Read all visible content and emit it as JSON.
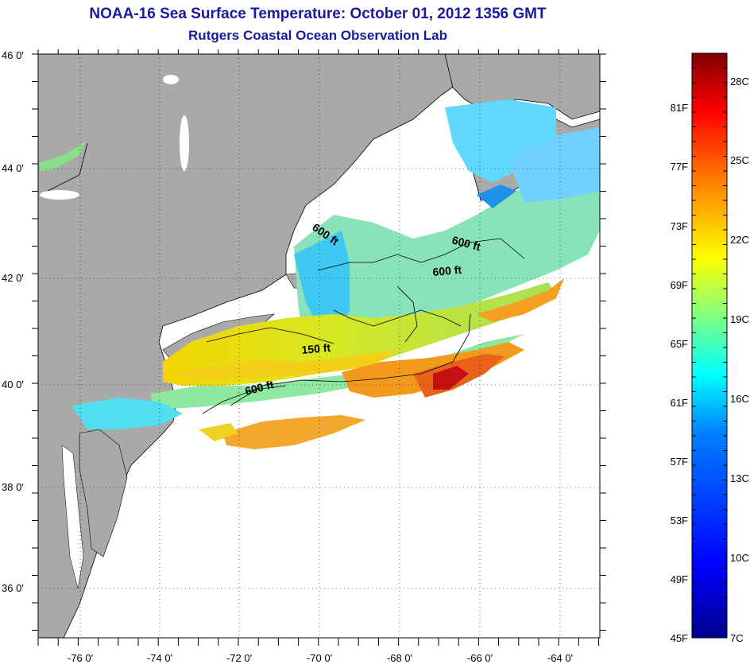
{
  "title": "NOAA-16 Sea Surface Temperature:  October 01, 2012 1356 GMT",
  "subtitle": "Rutgers Coastal Ocean Observation Lab",
  "lat_labels": [
    "46 0'",
    "44 0'",
    "42 0'",
    "40 0'",
    "38 0'",
    "36 0'"
  ],
  "lon_labels": [
    "-76 0'",
    "-74 0'",
    "-72 0'",
    "-70 0'",
    "-68 0'",
    "-66 0'",
    "-64 0'"
  ],
  "contour_labels": [
    "600 ft",
    "600 ft",
    "600 ft",
    "150 ft",
    "600 ft"
  ],
  "colorbar": {
    "fahrenheit_labels": [
      "81F",
      "77F",
      "73F",
      "69F",
      "65F",
      "61F",
      "57F",
      "53F",
      "49F",
      "45F"
    ],
    "celsius_labels": [
      "28C",
      "25C",
      "22C",
      "19C",
      "16C",
      "13C",
      "10C",
      "7C"
    ],
    "min_F": 45,
    "max_F": 84.2,
    "colormap": [
      "#00008f",
      "#0000ff",
      "#0080ff",
      "#00ffff",
      "#80ff80",
      "#ffff00",
      "#ff8000",
      "#ff0000",
      "#800000"
    ]
  },
  "colors": {
    "land": "#a9a9a9",
    "water_no_data": "#ffffff",
    "title": "#1a1aa0"
  }
}
